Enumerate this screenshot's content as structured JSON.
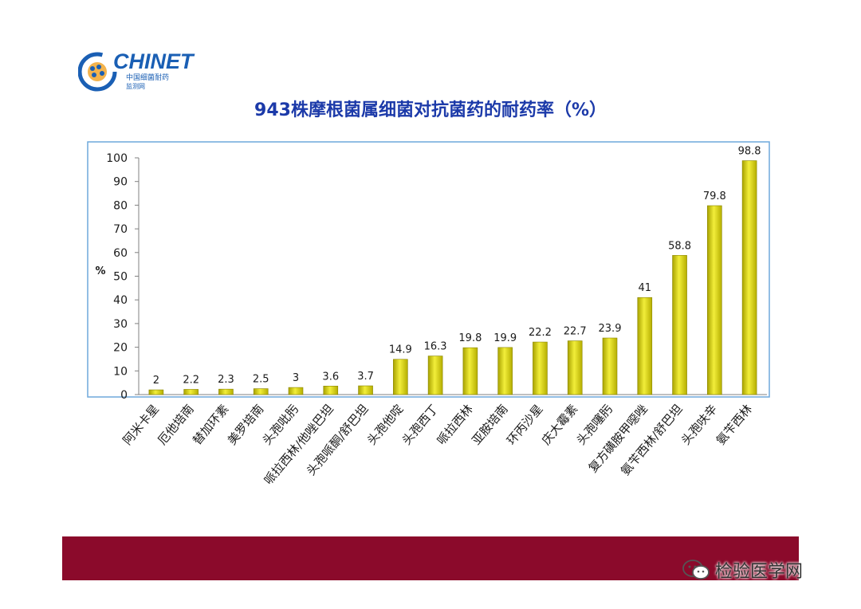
{
  "logo": {
    "brand": "CHINET",
    "sub_line1": "中国细菌耐药",
    "sub_line2": "监测网"
  },
  "watermark": {
    "text": "检验医学网",
    "icon": "wechat-icon"
  },
  "colors": {
    "title": "#1c3aa9",
    "bar": "#d9d400",
    "footer_band": "#8b0a2b",
    "plot_border": "#6fa8dc"
  },
  "chart_data": {
    "type": "bar",
    "title": "943株摩根菌属细菌对抗菌药的耐药率（%）",
    "ylabel": "%",
    "xlabel": "",
    "ylim": [
      0,
      100
    ],
    "yticks": [
      0,
      10,
      20,
      30,
      40,
      50,
      60,
      70,
      80,
      90,
      100
    ],
    "grid": false,
    "categories": [
      "阿米卡星",
      "厄他培南",
      "替加环素",
      "美罗培南",
      "头孢吡肟",
      "哌拉西林/他唑巴坦",
      "头孢哌酮/舒巴坦",
      "头孢他啶",
      "头孢西丁",
      "哌拉西林",
      "亚胺培南",
      "环丙沙星",
      "庆大霉素",
      "头孢噻肟",
      "复方磺胺甲噁唑",
      "氨苄西林/舒巴坦",
      "头孢呋辛",
      "氨苄西林"
    ],
    "values": [
      2,
      2.2,
      2.3,
      2.5,
      3,
      3.6,
      3.7,
      14.9,
      16.3,
      19.8,
      19.9,
      22.2,
      22.7,
      23.9,
      41,
      58.8,
      79.8,
      98.8
    ],
    "data_labels": [
      "2",
      "2.2",
      "2.3",
      "2.5",
      "3",
      "3.6",
      "3.7",
      "14.9",
      "16.3",
      "19.8",
      "19.9",
      "22.2",
      "22.7",
      "23.9",
      "41",
      "58.8",
      "79.8",
      "98.8"
    ]
  }
}
